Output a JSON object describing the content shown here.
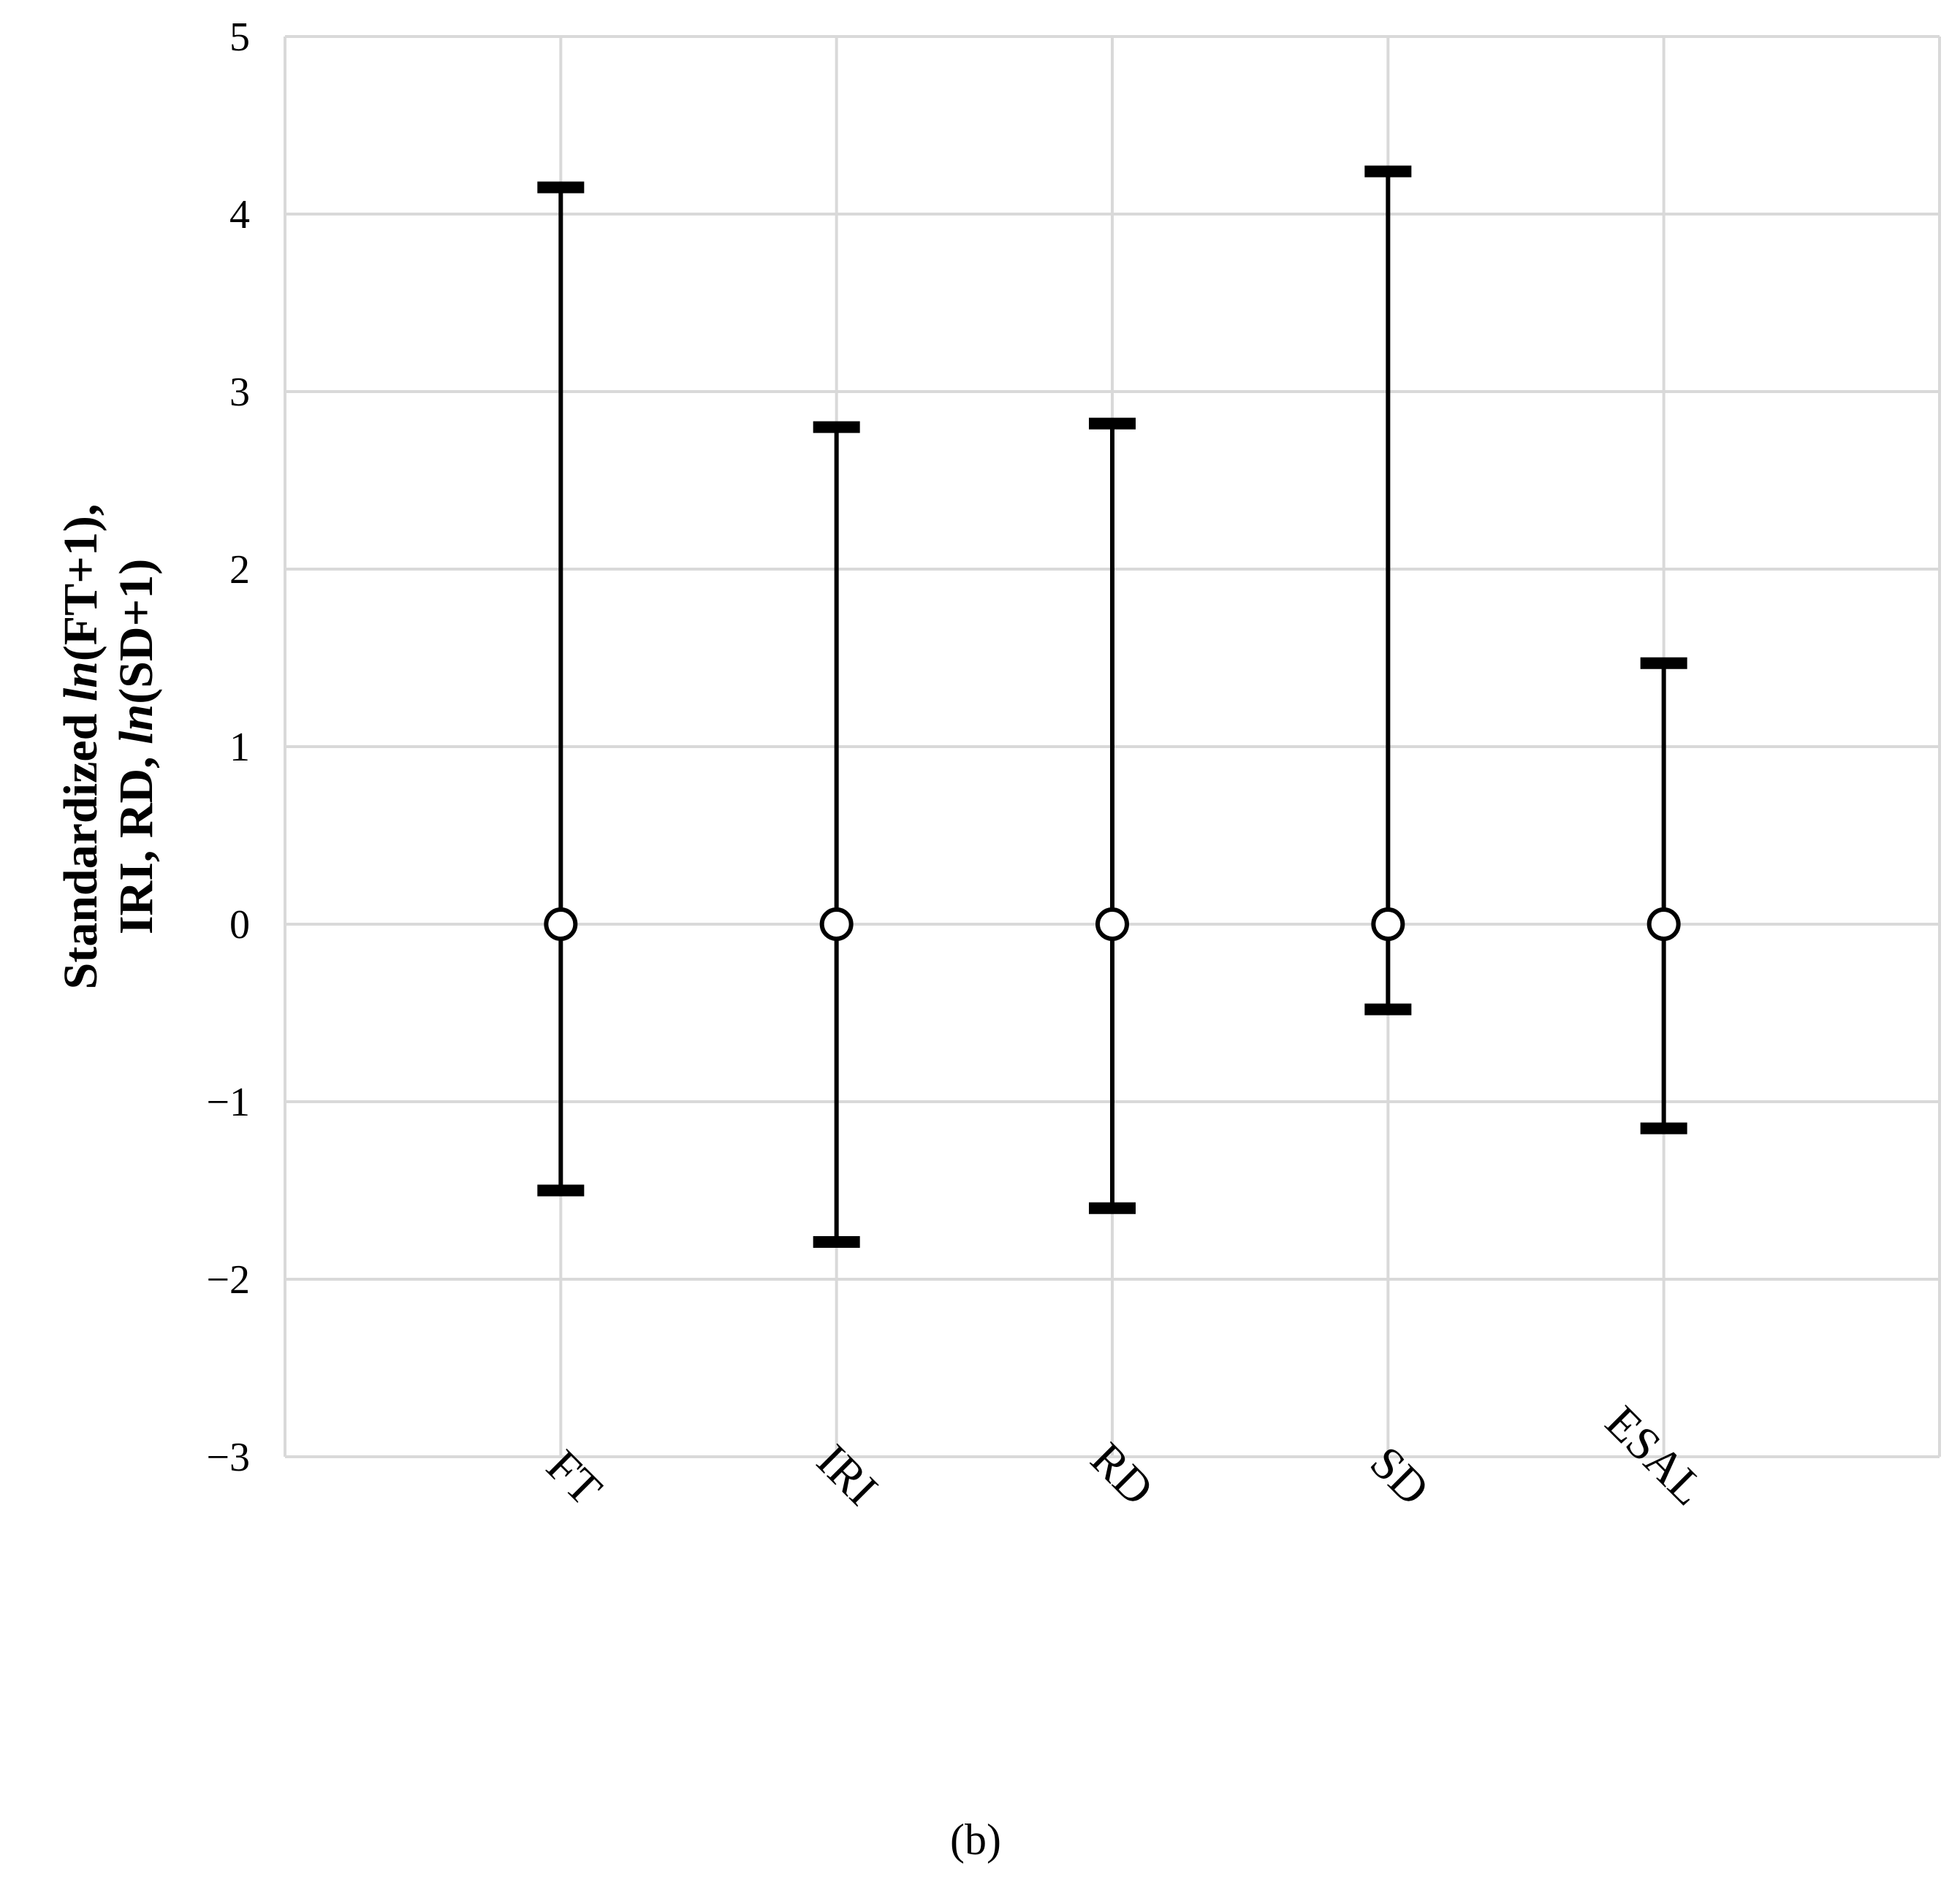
{
  "chart_data": {
    "type": "errorbar",
    "title": "",
    "caption": "(b)",
    "ylabel_parts": [
      [
        {
          "text": "Standardized ",
          "italic": false
        },
        {
          "text": "ln",
          "italic": true
        },
        {
          "text": "(FT+1),",
          "italic": false
        }
      ],
      [
        {
          "text": "IRI, RD, ",
          "italic": false
        },
        {
          "text": "ln",
          "italic": true
        },
        {
          "text": "(SD+1)",
          "italic": false
        }
      ]
    ],
    "ylim": [
      -3,
      5
    ],
    "yticks": [
      5,
      4,
      3,
      2,
      1,
      0,
      -1,
      -2,
      -3
    ],
    "ytick_labels": [
      "5",
      "4",
      "3",
      "2",
      "1",
      "0",
      "−1",
      "−2",
      "−3"
    ],
    "grid": true,
    "categories": [
      "FT",
      "IRI",
      "RD",
      "SD",
      "ESAL"
    ],
    "points": [
      {
        "category": "FT",
        "mean": 0,
        "min": -1.5,
        "max": 4.15
      },
      {
        "category": "IRI",
        "mean": 0,
        "min": -1.79,
        "max": 2.8
      },
      {
        "category": "RD",
        "mean": 0,
        "min": -1.6,
        "max": 2.82
      },
      {
        "category": "SD",
        "mean": 0,
        "min": -0.48,
        "max": 4.24
      },
      {
        "category": "ESAL",
        "mean": 0,
        "min": -1.15,
        "max": 1.47
      }
    ],
    "colors": {
      "grid": "#d9d9d9",
      "mark": "#000000"
    }
  }
}
